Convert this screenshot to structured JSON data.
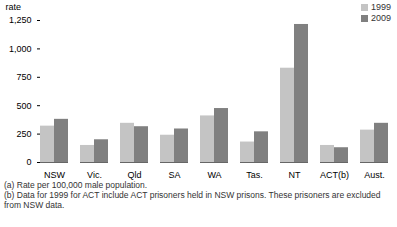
{
  "chart_data": {
    "type": "bar",
    "y_label": "rate",
    "categories": [
      "NSW",
      "Vic.",
      "Qld",
      "SA",
      "WA",
      "Tas.",
      "NT",
      "ACT(b)",
      "Aust."
    ],
    "series": [
      {
        "name": "1999",
        "color": "#c4c4c4",
        "values": [
          320,
          150,
          345,
          240,
          410,
          180,
          830,
          150,
          285
        ]
      },
      {
        "name": "2009",
        "color": "#808080",
        "values": [
          380,
          200,
          315,
          295,
          475,
          270,
          1215,
          130,
          345
        ]
      }
    ],
    "ylim": [
      0,
      1250
    ],
    "yticks": [
      0,
      250,
      500,
      750,
      1000,
      1250
    ],
    "grid": false,
    "legend": "top-right",
    "notes": [
      "(a) Rate per 100,000 male population.",
      "(b) Data for 1999 for ACT include ACT prisoners held in NSW prisons. These prisoners are excluded from NSW data."
    ]
  }
}
